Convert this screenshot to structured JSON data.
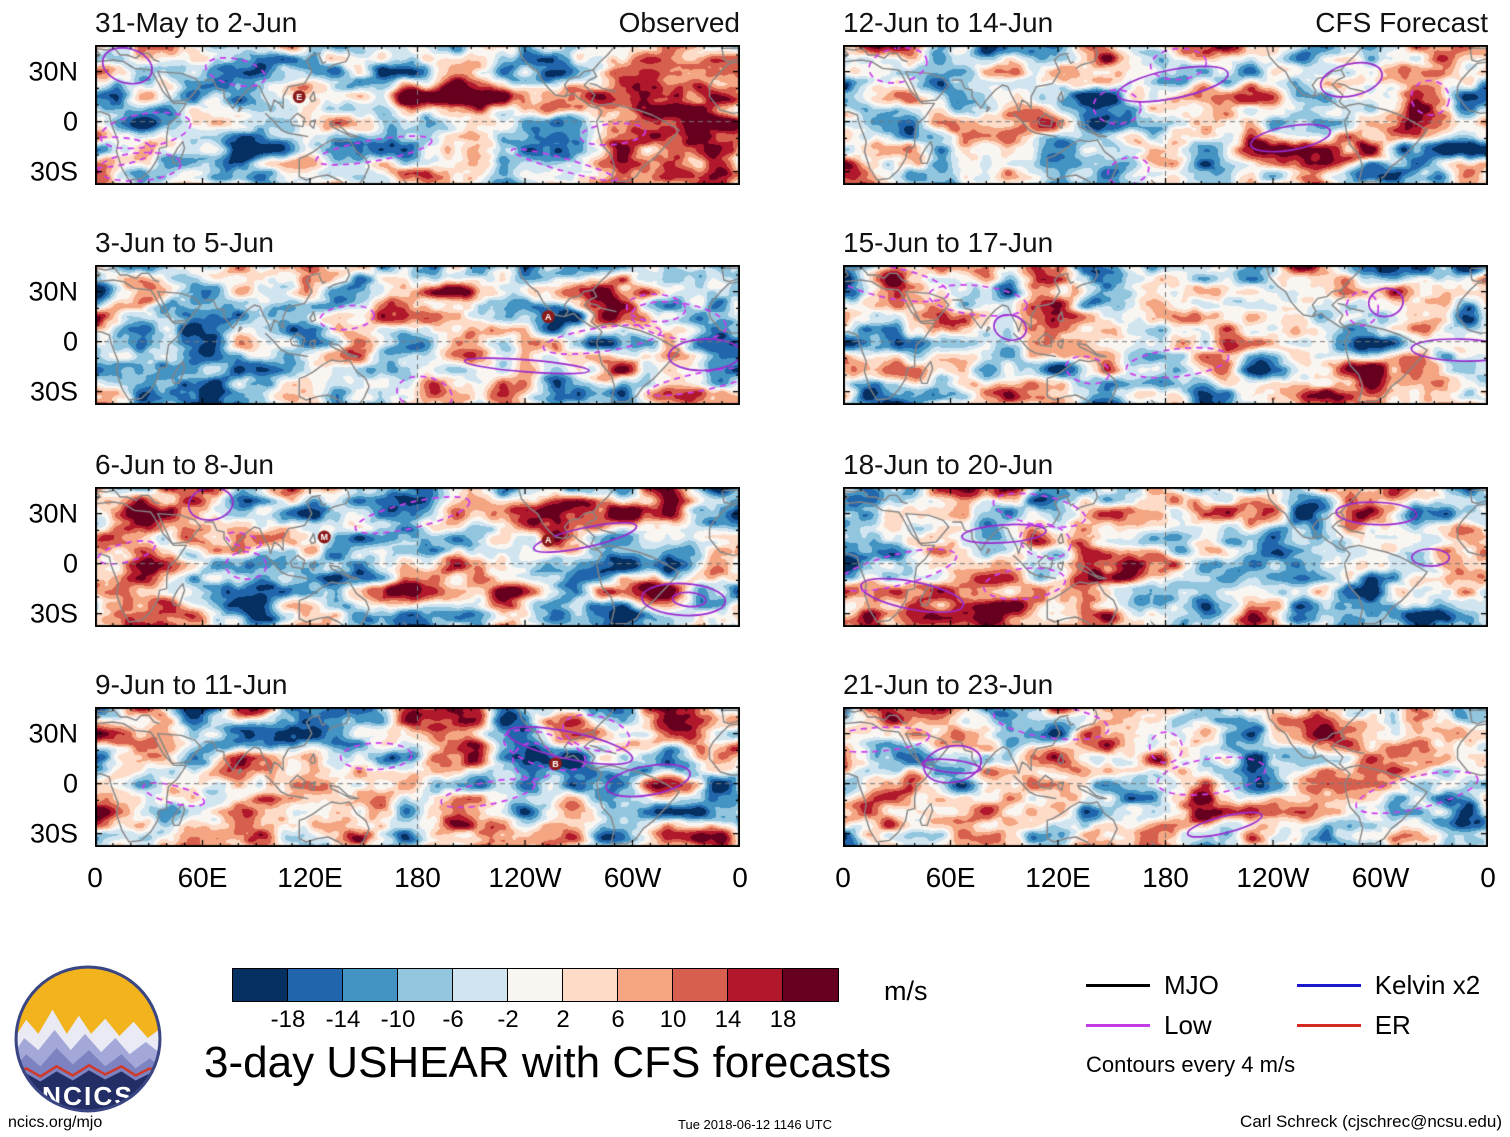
{
  "meta": {
    "title": "3-day USHEAR with CFS forecasts",
    "footer_left": "ncics.org/mjo",
    "footer_center": "Tue 2018-06-12 1146 UTC",
    "footer_right": "Carl Schreck (cjschrec@ncsu.edu)",
    "logo_text": "NCICS"
  },
  "axes": {
    "y_ticks": [
      {
        "label": "30N",
        "lat": 30
      },
      {
        "label": "0",
        "lat": 0
      },
      {
        "label": "30S",
        "lat": -30
      }
    ],
    "x_ticks": [
      "0",
      "60E",
      "120E",
      "180",
      "120W",
      "60W",
      "0"
    ]
  },
  "panels": [
    {
      "title": "31-May to 2-Jun",
      "corner": "Observed",
      "col": 0,
      "row": 0,
      "seed": 11,
      "markers": [
        {
          "label": "E",
          "lon": 114,
          "lat": 15
        }
      ]
    },
    {
      "title": "3-Jun to 5-Jun",
      "corner": "",
      "col": 0,
      "row": 1,
      "seed": 23,
      "markers": [
        {
          "label": "A",
          "lon": 253,
          "lat": 15
        }
      ]
    },
    {
      "title": "6-Jun to 8-Jun",
      "corner": "",
      "col": 0,
      "row": 2,
      "seed": 37,
      "markers": [
        {
          "label": "M",
          "lon": 128,
          "lat": 16
        },
        {
          "label": "A",
          "lon": 253,
          "lat": 14
        }
      ]
    },
    {
      "title": "9-Jun to 11-Jun",
      "corner": "",
      "col": 0,
      "row": 3,
      "seed": 41,
      "markers": [
        {
          "label": "B",
          "lon": 257,
          "lat": 12
        }
      ]
    },
    {
      "title": "12-Jun to 14-Jun",
      "corner": "CFS Forecast",
      "col": 1,
      "row": 0,
      "seed": 53,
      "markers": []
    },
    {
      "title": "15-Jun to 17-Jun",
      "corner": "",
      "col": 1,
      "row": 1,
      "seed": 67,
      "markers": []
    },
    {
      "title": "18-Jun to 20-Jun",
      "corner": "",
      "col": 1,
      "row": 2,
      "seed": 79,
      "markers": []
    },
    {
      "title": "21-Jun to 23-Jun",
      "corner": "",
      "col": 1,
      "row": 3,
      "seed": 97,
      "markers": []
    }
  ],
  "colorbar": {
    "ticks": [
      -18,
      -14,
      -10,
      -6,
      -2,
      2,
      6,
      10,
      14,
      18
    ],
    "colors": [
      "#053061",
      "#2166ac",
      "#4393c3",
      "#92c5de",
      "#d1e5f0",
      "#f9f6f2",
      "#fddbc7",
      "#f4a582",
      "#d6604d",
      "#b2182b",
      "#67001f"
    ],
    "units": "m/s"
  },
  "legend": {
    "items": [
      {
        "label": "MJO",
        "color": "#000000"
      },
      {
        "label": "Kelvin x2",
        "color": "#1a1acc"
      },
      {
        "label": "Low",
        "color": "#c43ce6"
      },
      {
        "label": "ER",
        "color": "#d42a20"
      }
    ],
    "note": "Contours every 4 m/s"
  },
  "map_style": {
    "coast_color": "#858585",
    "equator_dateline_color": "#777777",
    "low_contour_dashed_color": "#cb3df0",
    "low_contour_solid_color": "#9a2bd0",
    "storm_marker_color": "#8b1a1a"
  },
  "chart_data": {
    "type": "heatmap",
    "title": "3-day USHEAR with CFS forecasts",
    "units": "m/s",
    "colorbar_levels": [
      -18,
      -14,
      -10,
      -6,
      -2,
      2,
      6,
      10,
      14,
      18
    ],
    "contour_note": "Contours every 4 m/s",
    "x_ticks": [
      "0",
      "60E",
      "120E",
      "180",
      "120W",
      "60W",
      "0"
    ],
    "y_ticks": [
      "30N",
      "0",
      "30S"
    ],
    "panel_groups": [
      {
        "label": "Observed",
        "panels": [
          "31-May to 2-Jun",
          "3-Jun to 5-Jun",
          "6-Jun to 8-Jun",
          "9-Jun to 11-Jun"
        ]
      },
      {
        "label": "CFS Forecast",
        "panels": [
          "12-Jun to 14-Jun",
          "15-Jun to 17-Jun",
          "18-Jun to 20-Jun",
          "21-Jun to 23-Jun"
        ]
      }
    ],
    "legend_entries": [
      "MJO",
      "Low",
      "Kelvin x2",
      "ER"
    ],
    "storm_labels_visible": [
      "E",
      "A",
      "M",
      "A",
      "B"
    ]
  }
}
